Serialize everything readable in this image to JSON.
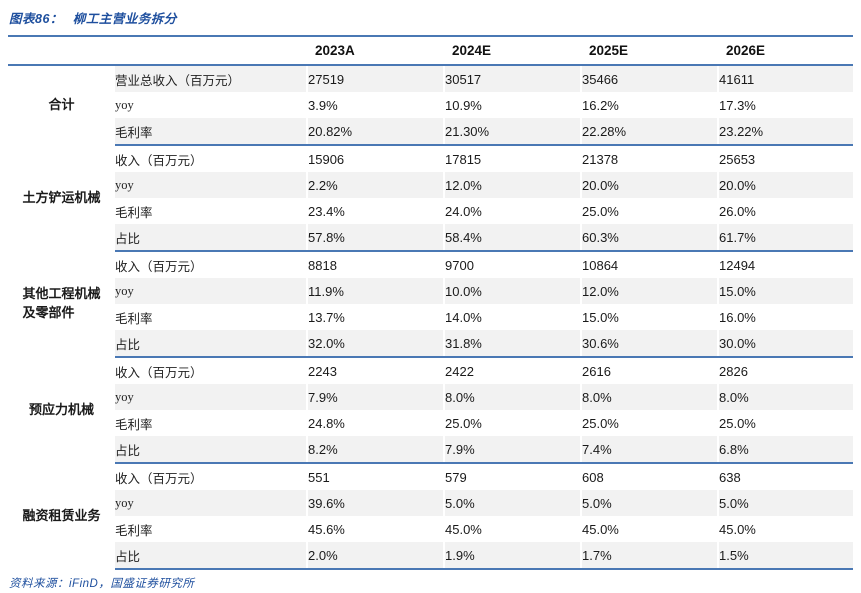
{
  "figure": {
    "label": "图表86：",
    "title": "柳工主营业务拆分"
  },
  "table": {
    "col_headers": [
      "2023A",
      "2024E",
      "2025E",
      "2026E"
    ],
    "groups": [
      {
        "name_lines": [
          "合计"
        ],
        "rows": [
          {
            "label": "营业总收入（百万元）",
            "values": [
              "27519",
              "30517",
              "35466",
              "41611"
            ]
          },
          {
            "label": "yoy",
            "values": [
              "3.9%",
              "10.9%",
              "16.2%",
              "17.3%"
            ]
          },
          {
            "label": "毛利率",
            "values": [
              "20.82%",
              "21.30%",
              "22.28%",
              "23.22%"
            ]
          }
        ]
      },
      {
        "name_lines": [
          "土方铲运机械"
        ],
        "rows": [
          {
            "label": "收入（百万元）",
            "values": [
              "15906",
              "17815",
              "21378",
              "25653"
            ]
          },
          {
            "label": "yoy",
            "values": [
              "2.2%",
              "12.0%",
              "20.0%",
              "20.0%"
            ]
          },
          {
            "label": "毛利率",
            "values": [
              "23.4%",
              "24.0%",
              "25.0%",
              "26.0%"
            ]
          },
          {
            "label": "占比",
            "values": [
              "57.8%",
              "58.4%",
              "60.3%",
              "61.7%"
            ]
          }
        ]
      },
      {
        "name_lines": [
          "其他工程机械",
          "及零部件"
        ],
        "rows": [
          {
            "label": "收入（百万元）",
            "values": [
              "8818",
              "9700",
              "10864",
              "12494"
            ]
          },
          {
            "label": "yoy",
            "values": [
              "11.9%",
              "10.0%",
              "12.0%",
              "15.0%"
            ]
          },
          {
            "label": "毛利率",
            "values": [
              "13.7%",
              "14.0%",
              "15.0%",
              "16.0%"
            ]
          },
          {
            "label": "占比",
            "values": [
              "32.0%",
              "31.8%",
              "30.6%",
              "30.0%"
            ]
          }
        ]
      },
      {
        "name_lines": [
          "预应力机械"
        ],
        "rows": [
          {
            "label": "收入（百万元）",
            "values": [
              "2243",
              "2422",
              "2616",
              "2826"
            ]
          },
          {
            "label": "yoy",
            "values": [
              "7.9%",
              "8.0%",
              "8.0%",
              "8.0%"
            ]
          },
          {
            "label": "毛利率",
            "values": [
              "24.8%",
              "25.0%",
              "25.0%",
              "25.0%"
            ]
          },
          {
            "label": "占比",
            "values": [
              "8.2%",
              "7.9%",
              "7.4%",
              "6.8%"
            ]
          }
        ]
      },
      {
        "name_lines": [
          "融资租赁业务"
        ],
        "rows": [
          {
            "label": "收入（百万元）",
            "values": [
              "551",
              "579",
              "608",
              "638"
            ]
          },
          {
            "label": "yoy",
            "values": [
              "39.6%",
              "5.0%",
              "5.0%",
              "5.0%"
            ]
          },
          {
            "label": "毛利率",
            "values": [
              "45.6%",
              "45.0%",
              "45.0%",
              "45.0%"
            ]
          },
          {
            "label": "占比",
            "values": [
              "2.0%",
              "1.9%",
              "1.7%",
              "1.5%"
            ]
          }
        ]
      }
    ]
  },
  "footer": {
    "source_text": "资料来源：iFinD，国盛证券研究所"
  },
  "colors": {
    "accent_blue": "#1e4f9e",
    "rule_blue": "#4a78b4",
    "stripe_gray": "#f2f2f2"
  }
}
